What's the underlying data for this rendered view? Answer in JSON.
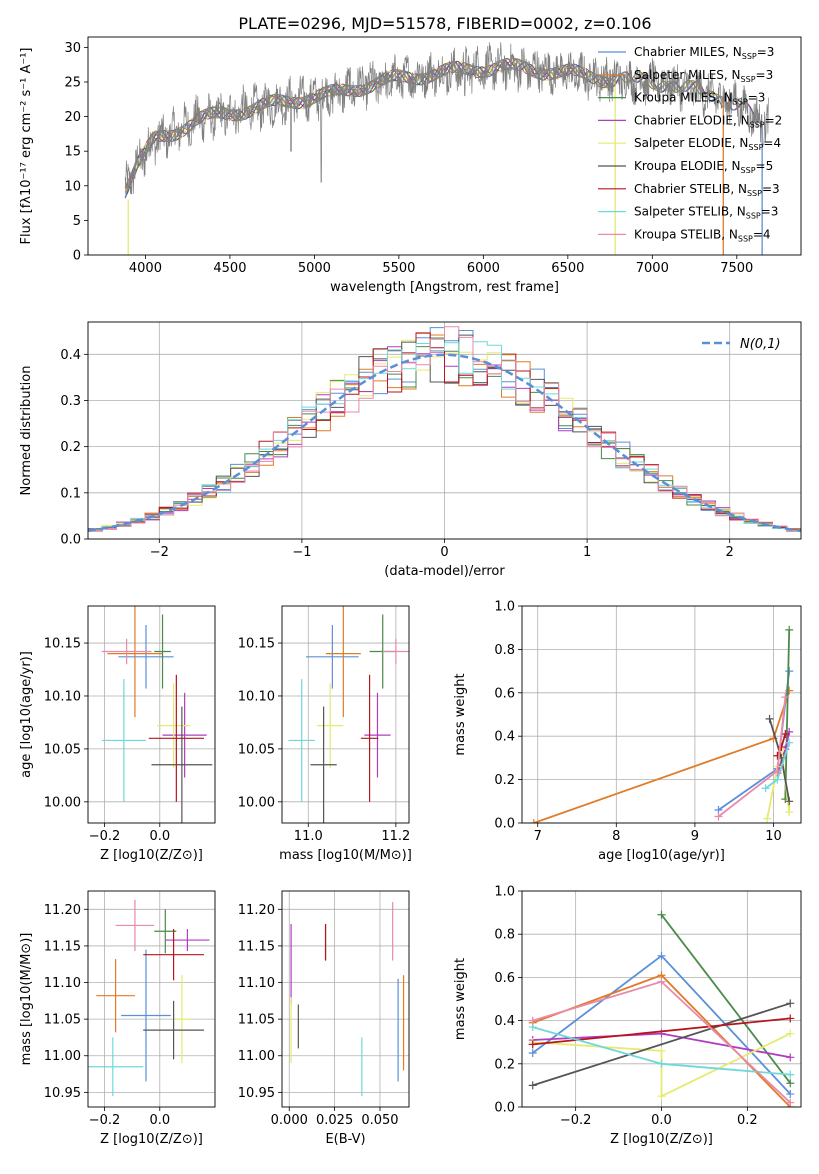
{
  "figure_title": "PLATE=0296, MJD=51578, FIBERID=0002, z=0.106",
  "colors": [
    "#5b8fd9",
    "#e07b28",
    "#4a8a4a",
    "#b03cc0",
    "#e6ea6e",
    "#555555",
    "#b5161e",
    "#6fd8d8",
    "#e88aa8"
  ],
  "spectrum_color": "#808080",
  "gauss_color": "#5b8fd9",
  "chart_data": [
    {
      "id": "spectrum",
      "type": "line",
      "xlabel": "wavelength [Angstrom, rest frame]",
      "ylabel": "Flux [fλ10⁻¹⁷ erg cm⁻² s⁻¹ A⁻¹]",
      "xlim": [
        3660,
        7880
      ],
      "ylim": [
        0,
        31.5
      ],
      "xticks": [
        "4000",
        "4500",
        "5000",
        "5500",
        "6000",
        "6500",
        "7000",
        "7500"
      ],
      "yticks": [
        "0",
        "5",
        "10",
        "15",
        "20",
        "25",
        "30"
      ],
      "continuum_x": [
        3880,
        3950,
        4050,
        4150,
        4300,
        4500,
        4700,
        4900,
        5100,
        5300,
        5500,
        5700,
        5900,
        6100,
        6300,
        6500,
        6700,
        6900,
        7100,
        7300,
        7500,
        7650
      ],
      "continuum_y": [
        9.5,
        13,
        16.5,
        17.5,
        19.5,
        20.5,
        21.5,
        22.5,
        23.2,
        24.5,
        25.5,
        26.2,
        26.8,
        27.2,
        26.8,
        26.3,
        25.6,
        25.2,
        24.8,
        23.4,
        22,
        19
      ],
      "legend": [
        "Chabrier MILES, N$_{SSP}$=3",
        "Salpeter MILES, N$_{SSP}$=3",
        "Kroupa MILES, N$_{SSP}$=3",
        "Chabrier ELODIE, N$_{SSP}$=2",
        "Salpeter ELODIE, N$_{SSP}$=4",
        "Kroupa ELODIE, N$_{SSP}$=5",
        "Chabrier STELIB, N$_{SSP}$=3",
        "Salpeter STELIB, N$_{SSP}$=3",
        "Kroupa STELIB, N$_{SSP}$=4"
      ],
      "legend_placement": "right",
      "legend_names": [
        "Chabrier MILES, N",
        "Salpeter MILES, N",
        "Kroupa MILES, N",
        "Chabrier ELODIE, N",
        "Salpeter ELODIE, N",
        "Kroupa ELODIE, N",
        "Chabrier STELIB, N",
        "Salpeter STELIB, N",
        "Kroupa STELIB, N"
      ],
      "legend_sub": "SSP",
      "legend_n": [
        "=3",
        "=3",
        "=3",
        "=2",
        "=4",
        "=5",
        "=3",
        "=3",
        "=4"
      ],
      "model_ranges": [
        [
          3880,
          7650
        ],
        [
          3880,
          7420
        ],
        [
          3880,
          7420
        ],
        [
          3880,
          6780
        ],
        [
          3880,
          6780
        ],
        [
          3880,
          6780
        ],
        [
          3880,
          7650
        ],
        [
          3880,
          7420
        ],
        [
          3880,
          6780
        ]
      ],
      "grid": false
    },
    {
      "id": "residuals",
      "type": "histogram",
      "xlabel": "(data-model)/error",
      "ylabel": "Normed distribution",
      "xlim": [
        -2.5,
        2.5
      ],
      "ylim": [
        0,
        0.47
      ],
      "xticks": [
        "−2",
        "−1",
        "0",
        "1",
        "2"
      ],
      "yticks": [
        "0.0",
        "0.1",
        "0.2",
        "0.3",
        "0.4"
      ],
      "bin_width": 0.1,
      "gauss_label": "N(0,1)",
      "legend_placement": "upper right",
      "grid": true
    },
    {
      "id": "age_vs_Z",
      "type": "errorbar",
      "xlabel": "Z [log10(Z/Z⊙)]",
      "ylabel": "age  [log10(age/yr)]",
      "xlim": [
        -0.26,
        0.2
      ],
      "ylim": [
        9.98,
        10.185
      ],
      "xticks": [
        "−0.2",
        "0.0"
      ],
      "yticks": [
        "10.00",
        "10.05",
        "10.10",
        "10.15"
      ],
      "points": [
        [
          -0.05,
          10.137,
          0.1,
          0.03
        ],
        [
          -0.09,
          10.14,
          0.1,
          0.06
        ],
        [
          0.01,
          10.142,
          0.03,
          0.035
        ],
        [
          0.09,
          10.063,
          0.08,
          0.04
        ],
        [
          0.05,
          10.072,
          0.06,
          0.04
        ],
        [
          0.08,
          10.035,
          0.11,
          0.055
        ],
        [
          0.06,
          10.06,
          0.1,
          0.06
        ],
        [
          -0.13,
          10.058,
          0.08,
          0.058
        ],
        [
          -0.12,
          10.142,
          0.09,
          0.012
        ]
      ],
      "grid": true
    },
    {
      "id": "age_vs_mass",
      "type": "errorbar",
      "xlabel": "mass [log10(M/M⊙)]",
      "ylabel": "",
      "xlim": [
        10.94,
        11.23
      ],
      "ylim": [
        9.98,
        10.185
      ],
      "xticks": [
        "11.0",
        "11.2"
      ],
      "yticks": [
        "10.00",
        "10.05",
        "10.10",
        "10.15"
      ],
      "points": [
        [
          11.055,
          10.137,
          0.06,
          0.03
        ],
        [
          11.08,
          10.14,
          0.04,
          0.06
        ],
        [
          11.17,
          10.142,
          0.03,
          0.035
        ],
        [
          11.158,
          10.063,
          0.03,
          0.04
        ],
        [
          11.05,
          10.072,
          0.03,
          0.04
        ],
        [
          11.035,
          10.035,
          0.03,
          0.055
        ],
        [
          11.14,
          10.06,
          0.02,
          0.06
        ],
        [
          10.985,
          10.058,
          0.03,
          0.058
        ],
        [
          11.2,
          10.142,
          0.03,
          0.012
        ]
      ],
      "grid": true
    },
    {
      "id": "weight_vs_age",
      "type": "line",
      "xlabel": "age  [log10(age/yr)]",
      "ylabel": "mass weight",
      "xlim": [
        6.8,
        10.35
      ],
      "ylim": [
        0,
        1
      ],
      "xticks": [
        "7",
        "8",
        "9",
        "10"
      ],
      "yticks": [
        "0.0",
        "0.2",
        "0.4",
        "0.6",
        "0.8",
        "1.0"
      ],
      "series": [
        {
          "x": [
            9.3,
            10.05,
            10.2
          ],
          "y": [
            0.06,
            0.25,
            0.7
          ]
        },
        {
          "x": [
            6.95,
            10.0,
            10.2
          ],
          "y": [
            0.0,
            0.39,
            0.61
          ]
        },
        {
          "x": [
            10.15,
            10.2
          ],
          "y": [
            0.11,
            0.89
          ]
        },
        {
          "x": [
            10.05,
            10.15,
            10.2
          ],
          "y": [
            0.23,
            0.34,
            0.42
          ]
        },
        {
          "x": [
            9.92,
            10.05,
            10.1,
            10.2,
            10.2
          ],
          "y": [
            0.02,
            0.26,
            0.34,
            0.05,
            0.1
          ]
        },
        {
          "x": [
            9.95,
            10.1,
            10.2
          ],
          "y": [
            0.48,
            0.3,
            0.1
          ]
        },
        {
          "x": [
            10.05,
            10.1,
            10.15
          ],
          "y": [
            0.31,
            0.35,
            0.41
          ]
        },
        {
          "x": [
            9.9,
            10.05,
            10.2
          ],
          "y": [
            0.16,
            0.2,
            0.37
          ]
        },
        {
          "x": [
            9.3,
            10.05,
            10.15
          ],
          "y": [
            0.03,
            0.24,
            0.58
          ]
        }
      ],
      "grid": true
    },
    {
      "id": "mass_vs_Z",
      "type": "errorbar",
      "xlabel": "Z [log10(Z/Z⊙)]",
      "ylabel": "mass [log10(M/M⊙)]",
      "xlim": [
        -0.26,
        0.2
      ],
      "ylim": [
        10.93,
        11.225
      ],
      "xticks": [
        "−0.2",
        "0.0"
      ],
      "yticks": [
        "10.95",
        "11.00",
        "11.05",
        "11.10",
        "11.15",
        "11.20"
      ],
      "points": [
        [
          -0.05,
          11.055,
          0.09,
          0.09
        ],
        [
          -0.16,
          11.082,
          0.07,
          0.05
        ],
        [
          0.02,
          11.17,
          0.04,
          0.03
        ],
        [
          0.1,
          11.158,
          0.08,
          0.015
        ],
        [
          0.08,
          11.05,
          0.03,
          0.06
        ],
        [
          0.05,
          11.035,
          0.11,
          0.04
        ],
        [
          0.05,
          11.138,
          0.11,
          0.035
        ],
        [
          -0.17,
          10.985,
          0.11,
          0.04
        ],
        [
          -0.09,
          11.178,
          0.07,
          0.035
        ]
      ],
      "grid": true
    },
    {
      "id": "mass_vs_EBV",
      "type": "errorbar",
      "xlabel": "E(B-V)",
      "ylabel": "",
      "xlim": [
        -0.004,
        0.066
      ],
      "ylim": [
        10.93,
        11.225
      ],
      "xticks": [
        "0.000",
        "0.025",
        "0.050"
      ],
      "yticks": [
        "10.95",
        "11.00",
        "11.05",
        "11.10",
        "11.15",
        "11.20"
      ],
      "points": [
        [
          0.06,
          11.035,
          0,
          0.07
        ],
        [
          0.063,
          11.045,
          0,
          0.065
        ],
        [
          0.02,
          11.155,
          0,
          0.025
        ],
        [
          0.001,
          11.125,
          0,
          0.055
        ],
        [
          0.001,
          11.035,
          0,
          0.045
        ],
        [
          0.005,
          11.04,
          0,
          0.03
        ],
        [
          0.02,
          11.155,
          0,
          0.025
        ],
        [
          0.04,
          10.985,
          0,
          0.04
        ],
        [
          0.057,
          11.17,
          0,
          0.04
        ]
      ],
      "grid": true
    },
    {
      "id": "weight_vs_Z",
      "type": "line",
      "xlabel": "Z [log10(Z/Z⊙)]",
      "ylabel": "mass weight",
      "xlim": [
        -0.325,
        0.325
      ],
      "ylim": [
        0,
        1
      ],
      "xticks": [
        "−0.2",
        "0.0",
        "0.2"
      ],
      "yticks": [
        "0.0",
        "0.2",
        "0.4",
        "0.6",
        "0.8",
        "1.0"
      ],
      "series": [
        {
          "x": [
            -0.3,
            0.0,
            0.3
          ],
          "y": [
            0.25,
            0.7,
            0.06
          ]
        },
        {
          "x": [
            -0.3,
            0.0,
            0.3
          ],
          "y": [
            0.39,
            0.61,
            0.0
          ]
        },
        {
          "x": [
            0.0,
            0.3
          ],
          "y": [
            0.89,
            0.11
          ]
        },
        {
          "x": [
            -0.3,
            0.0,
            0.3
          ],
          "y": [
            0.31,
            0.34,
            0.23
          ]
        },
        {
          "x": [
            -0.3,
            0.0,
            0.0,
            0.3
          ],
          "y": [
            0.3,
            0.26,
            0.05,
            0.34
          ]
        },
        {
          "x": [
            -0.3,
            0.3
          ],
          "y": [
            0.1,
            0.48
          ]
        },
        {
          "x": [
            -0.3,
            0.3
          ],
          "y": [
            0.29,
            0.41
          ]
        },
        {
          "x": [
            -0.3,
            0.0,
            0.3
          ],
          "y": [
            0.37,
            0.2,
            0.15
          ]
        },
        {
          "x": [
            -0.3,
            0.0,
            0.3
          ],
          "y": [
            0.4,
            0.58,
            0.02
          ]
        }
      ],
      "grid": true
    }
  ]
}
